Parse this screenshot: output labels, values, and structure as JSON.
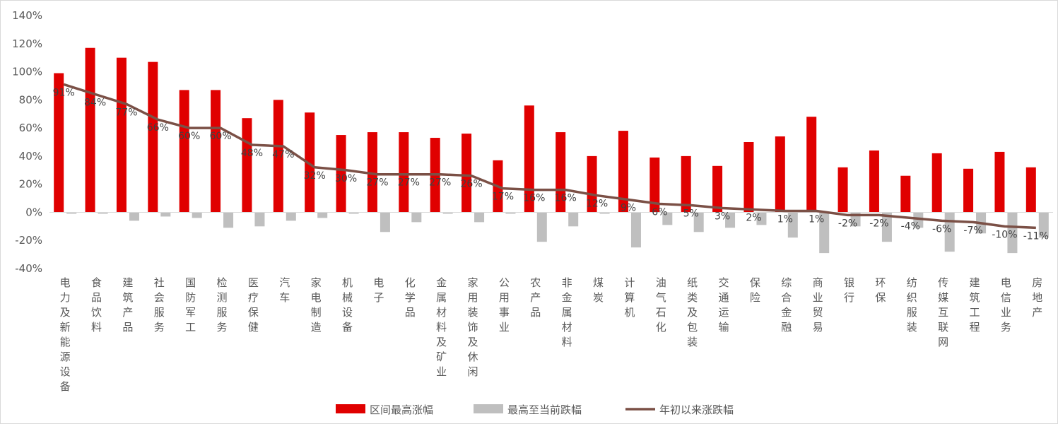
{
  "chart_data": {
    "type": "bar",
    "categories": [
      "电力及新能源设备",
      "食品饮料",
      "建筑产品",
      "社会服务",
      "国防军工",
      "检测服务",
      "医疗保健",
      "汽车",
      "家电制造",
      "机械设备",
      "电子",
      "化学品",
      "金属材料及矿业",
      "家用装饰及休闲",
      "公用事业",
      "农产品",
      "非金属材料",
      "煤炭",
      "计算机",
      "油气石化",
      "纸类及包装",
      "交通运输",
      "保险",
      "综合金融",
      "商业贸易",
      "银行",
      "环保",
      "纺织服装",
      "传媒互联网",
      "建筑工程",
      "电信业务",
      "房地产"
    ],
    "series": [
      {
        "name": "区间最高涨幅",
        "kind": "bar",
        "color": "#E00000",
        "values": [
          99,
          117,
          110,
          107,
          87,
          87,
          67,
          80,
          71,
          55,
          57,
          57,
          53,
          56,
          37,
          76,
          57,
          40,
          58,
          39,
          40,
          33,
          50,
          54,
          68,
          32,
          44,
          26,
          42,
          31,
          43,
          32
        ]
      },
      {
        "name": "最高至当前跌幅",
        "kind": "bar",
        "color": "#BFBFBF",
        "values": [
          -1,
          -1,
          -6,
          -3,
          -4,
          -11,
          -10,
          -6,
          -4,
          -1,
          -14,
          -7,
          -1,
          -7,
          -1,
          -21,
          -10,
          -1,
          -25,
          -9,
          -14,
          -11,
          -9,
          -18,
          -29,
          -10,
          -21,
          -11,
          -28,
          -15,
          -29,
          -18
        ]
      },
      {
        "name": "年初以来涨跌幅",
        "kind": "line",
        "color": "#7B5046",
        "values": [
          91,
          84,
          77,
          66,
          60,
          60,
          48,
          47,
          32,
          30,
          27,
          27,
          27,
          26,
          17,
          16,
          16,
          12,
          9,
          6,
          5,
          3,
          2,
          1,
          1,
          -2,
          -2,
          -4,
          -6,
          -7,
          -10,
          -11
        ]
      }
    ],
    "data_labels": [
      "91%",
      "84%",
      "77%",
      "66%",
      "60%",
      "60%",
      "48%",
      "47%",
      "32%",
      "30%",
      "27%",
      "27%",
      "27%",
      "26%",
      "17%",
      "16%",
      "16%",
      "12%",
      "9%",
      "6%",
      "5%",
      "3%",
      "2%",
      "1%",
      "1%",
      "-2%",
      "-2%",
      "-4%",
      "-6%",
      "-7%",
      "-10%",
      "-11%"
    ],
    "y_ticks": [
      "-40%",
      "-20%",
      "0%",
      "20%",
      "40%",
      "60%",
      "80%",
      "100%",
      "120%",
      "140%"
    ],
    "ylim": [
      -40,
      140
    ],
    "grid": false,
    "legend_position": "bottom-center"
  }
}
